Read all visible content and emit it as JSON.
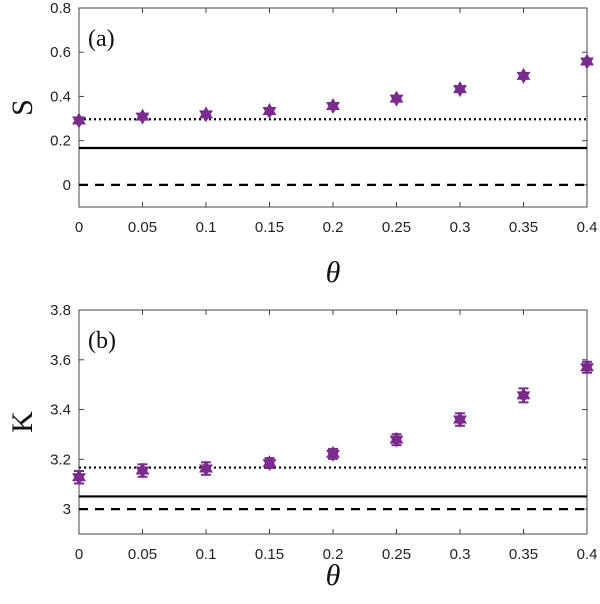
{
  "chart_data": [
    {
      "type": "scatter",
      "panel_label": "(a)",
      "ylabel": "S",
      "xlabel": "θ",
      "xlim": [
        0,
        0.4
      ],
      "ylim": [
        -0.1,
        0.8
      ],
      "xticks": [
        "0",
        "0.05",
        "0.1",
        "0.15",
        "0.2",
        "0.25",
        "0.3",
        "0.35",
        "0.4"
      ],
      "yticks": [
        "0",
        "0.2",
        "0.4",
        "0.6",
        "0.8"
      ],
      "x": [
        0,
        0.05,
        0.1,
        0.15,
        0.2,
        0.25,
        0.3,
        0.35,
        0.4
      ],
      "values": [
        0.291,
        0.309,
        0.319,
        0.334,
        0.357,
        0.39,
        0.433,
        0.493,
        0.558
      ],
      "errors": [
        0.01,
        0.01,
        0.01,
        0.01,
        0.01,
        0.01,
        0.01,
        0.01,
        0.01
      ],
      "reference_lines": [
        {
          "style": "dotted",
          "y": 0.297
        },
        {
          "style": "solid",
          "y": 0.167
        },
        {
          "style": "dashed",
          "y": 0
        }
      ],
      "marker_color": "#7b2a8e"
    },
    {
      "type": "scatter",
      "panel_label": "(b)",
      "ylabel": "K",
      "xlabel": "θ",
      "xlim": [
        0,
        0.4
      ],
      "ylim": [
        2.9,
        3.8
      ],
      "xticks": [
        "0",
        "0.05",
        "0.1",
        "0.15",
        "0.2",
        "0.25",
        "0.3",
        "0.35",
        "0.4"
      ],
      "yticks": [
        "3",
        "3.2",
        "3.4",
        "3.6",
        "3.8"
      ],
      "x": [
        0,
        0.05,
        0.1,
        0.15,
        0.2,
        0.25,
        0.3,
        0.35,
        0.4
      ],
      "values": [
        3.128,
        3.155,
        3.163,
        3.185,
        3.222,
        3.279,
        3.36,
        3.457,
        3.57
      ],
      "errors": [
        0.025,
        0.025,
        0.025,
        0.02,
        0.02,
        0.022,
        0.025,
        0.028,
        0.022
      ],
      "reference_lines": [
        {
          "style": "dotted",
          "y": 3.167
        },
        {
          "style": "solid",
          "y": 3.051
        },
        {
          "style": "dashed",
          "y": 3.0
        }
      ],
      "marker_color": "#7b2a8e"
    }
  ]
}
